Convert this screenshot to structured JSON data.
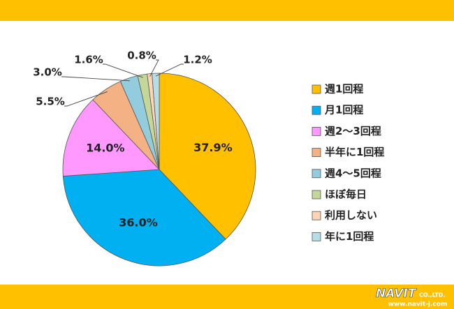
{
  "chart_data": {
    "type": "pie",
    "categories": [
      "週1回程",
      "月1回程",
      "週2～3回程",
      "半年に1回程",
      "週4～5回程",
      "ほぼ毎日",
      "利用しない",
      "年に1回程"
    ],
    "values": [
      37.9,
      36.0,
      14.0,
      5.5,
      3.0,
      1.6,
      0.8,
      1.2
    ],
    "value_labels": [
      "37.9%",
      "36.0%",
      "14.0%",
      "5.5%",
      "3.0%",
      "1.6%",
      "0.8%",
      "1.2%"
    ],
    "colors": [
      "#FFC000",
      "#00B0F0",
      "#FF99FF",
      "#F4B183",
      "#93CDDD",
      "#C4D79B",
      "#FCD5B4",
      "#B7DEE8"
    ],
    "legend": "right"
  },
  "footer": {
    "logo": "NAVIT",
    "company": "CO.,LTD.",
    "url": "www.navit-j.com"
  }
}
